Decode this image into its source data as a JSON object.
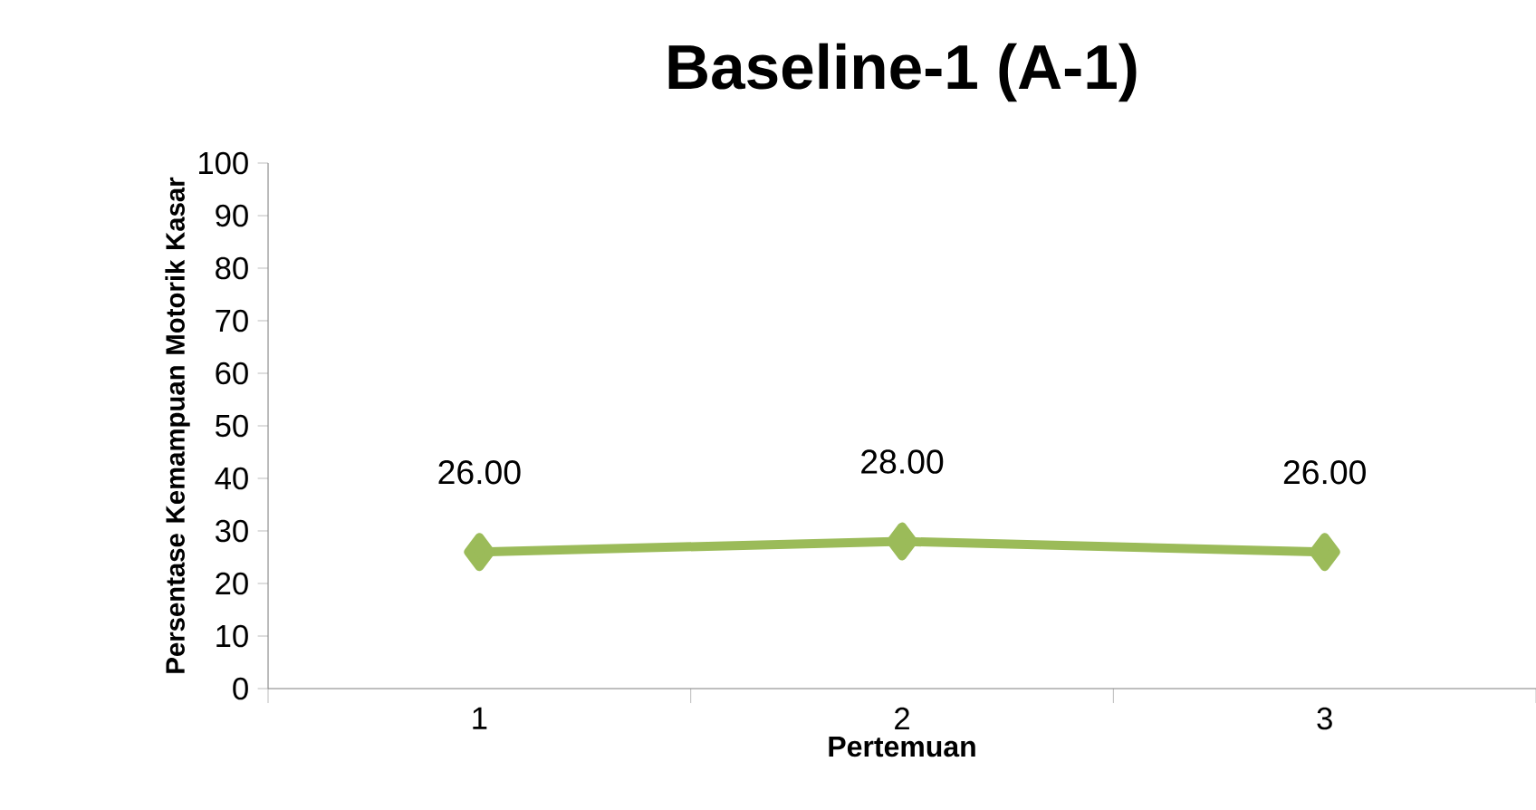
{
  "chart_data": {
    "type": "line",
    "title": "Baseline-1 (A-1)",
    "xlabel": "Pertemuan",
    "ylabel": "Persentase Kemampuan Motorik Kasar",
    "categories": [
      "1",
      "2",
      "3"
    ],
    "values": [
      26,
      28,
      26
    ],
    "value_labels": [
      "26.00",
      "28.00",
      "26.00"
    ],
    "color": "#9bbb59",
    "marker": "diamond",
    "ylim": [
      0,
      100
    ],
    "yticks": [
      0,
      10,
      20,
      30,
      40,
      50,
      60,
      70,
      80,
      90,
      100
    ]
  }
}
